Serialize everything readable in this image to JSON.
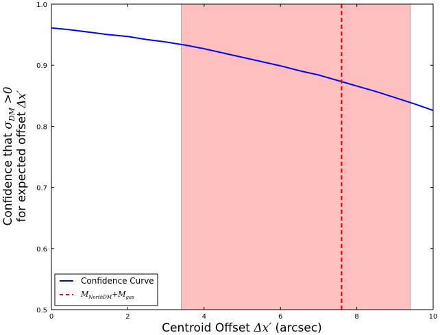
{
  "chart_data": {
    "type": "line",
    "xlabel_text": "Centroid Offset ",
    "xlabel_math": "Δx′",
    "xlabel_unit": " (arcsec)",
    "ylabel_line1_text": "Confidence that ",
    "ylabel_line1_math": "σ",
    "ylabel_line1_sub": "DM",
    "ylabel_line1_tail": " >0",
    "ylabel_line2_text": "for expected offset ",
    "ylabel_line2_math": "Δx′",
    "xlim": [
      0,
      10
    ],
    "ylim": [
      0.5,
      1.0
    ],
    "xticks": [
      "0",
      "2",
      "4",
      "6",
      "8",
      "10"
    ],
    "yticks": [
      "0.5",
      "0.6",
      "0.7",
      "0.8",
      "0.9",
      "1.0"
    ],
    "shaded_region": {
      "x_start": 3.4,
      "x_end": 9.4,
      "color": "#ffbfbf"
    },
    "vertical_line": {
      "x": 7.6,
      "color": "#ff0000",
      "style": "dashed"
    },
    "series": [
      {
        "name": "Confidence Curve",
        "color": "#0000ff",
        "x": [
          0,
          0.5,
          1,
          1.5,
          2,
          2.5,
          3,
          3.5,
          4,
          4.5,
          5,
          5.5,
          6,
          6.5,
          7,
          7.5,
          8,
          8.5,
          9,
          9.5,
          10
        ],
        "y": [
          0.961,
          0.958,
          0.954,
          0.95,
          0.947,
          0.942,
          0.938,
          0.933,
          0.927,
          0.92,
          0.913,
          0.906,
          0.899,
          0.891,
          0.884,
          0.875,
          0.866,
          0.857,
          0.847,
          0.837,
          0.826
        ]
      }
    ],
    "legend": {
      "position": "lower-left",
      "entries": [
        {
          "label": "Confidence Curve"
        },
        {
          "label_math": "M",
          "label_sub1": "NorthDM",
          "label_plus": "+M",
          "label_sub2": "gas"
        }
      ]
    }
  }
}
